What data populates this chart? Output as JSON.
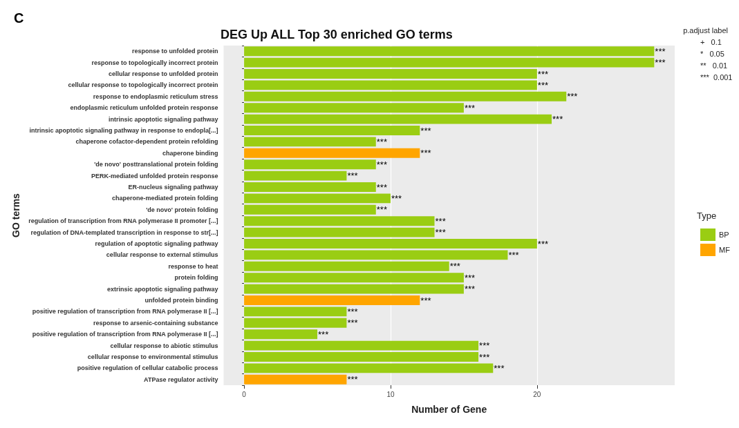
{
  "chart_data": {
    "type": "bar",
    "orientation": "horizontal",
    "title": "DEG Up ALL Top 30 enriched GO terms",
    "xlabel": "Number of Gene",
    "ylabel": "GO terms",
    "legend_title": "Type",
    "legend": "right",
    "categories": [
      "response to unfolded protein",
      "response to topologically incorrect protein",
      "cellular response to unfolded protein",
      "cellular response to topologically incorrect protein",
      "response to endoplasmic reticulum stress",
      "endoplasmic reticulum unfolded protein response",
      "intrinsic apoptotic signaling pathway",
      "intrinsic apoptotic signaling pathway in response to endopla[...]",
      "chaperone cofactor-dependent protein refolding",
      "chaperone binding",
      "'de novo' posttranslational protein folding",
      "PERK-mediated unfolded protein response",
      "ER-nucleus signaling pathway",
      "chaperone-mediated protein folding",
      "'de novo' protein folding",
      "regulation of transcription from RNA polymerase II promoter [...]",
      "regulation of DNA-templated transcription in response to str[...]",
      "regulation of apoptotic signaling pathway",
      "cellular response to external stimulus",
      "response to heat",
      "protein folding",
      "extrinsic apoptotic signaling pathway",
      "unfolded protein binding",
      "positive regulation of transcription from RNA polymerase II [...]",
      "response to arsenic-containing substance",
      "positive regulation of transcription from RNA polymerase II [...]",
      "cellular response to abiotic stimulus",
      "cellular response to environmental stimulus",
      "positive regulation of cellular catabolic process",
      "ATPase regulator activity"
    ],
    "series": [
      {
        "name": "BP",
        "color": "#9acd13",
        "values": [
          28,
          28,
          20,
          20,
          22,
          15,
          21,
          12,
          9,
          null,
          9,
          7,
          9,
          10,
          9,
          13,
          13,
          20,
          18,
          14,
          15,
          15,
          null,
          7,
          7,
          5,
          16,
          16,
          17,
          null
        ],
        "value_labels": [
          "***",
          "***",
          "***",
          "***",
          "***",
          "***",
          "***",
          "***",
          "***",
          null,
          "***",
          "***",
          "***",
          "***",
          "***",
          "***",
          "***",
          "***",
          "***",
          "***",
          "***",
          "***",
          null,
          "***",
          "***",
          "***",
          "***",
          "***",
          "***",
          null
        ]
      },
      {
        "name": "MF",
        "color": "#ffa500",
        "values": [
          null,
          null,
          null,
          null,
          null,
          null,
          null,
          null,
          null,
          12,
          null,
          null,
          null,
          null,
          null,
          null,
          null,
          null,
          null,
          null,
          null,
          null,
          12,
          null,
          null,
          null,
          null,
          null,
          null,
          7
        ],
        "value_labels": [
          null,
          null,
          null,
          null,
          null,
          null,
          null,
          null,
          null,
          "***",
          null,
          null,
          null,
          null,
          null,
          null,
          null,
          null,
          null,
          null,
          null,
          null,
          "***",
          null,
          null,
          null,
          null,
          null,
          null,
          "***"
        ]
      }
    ],
    "xlim": [
      -1.4,
      29.4
    ],
    "xticks": [
      0,
      10,
      20
    ],
    "grid": "x",
    "annotations": [
      "C",
      "p.adjust label",
      "+   0.1",
      "*   0.05",
      "**   0.01",
      "***  0.001"
    ]
  }
}
